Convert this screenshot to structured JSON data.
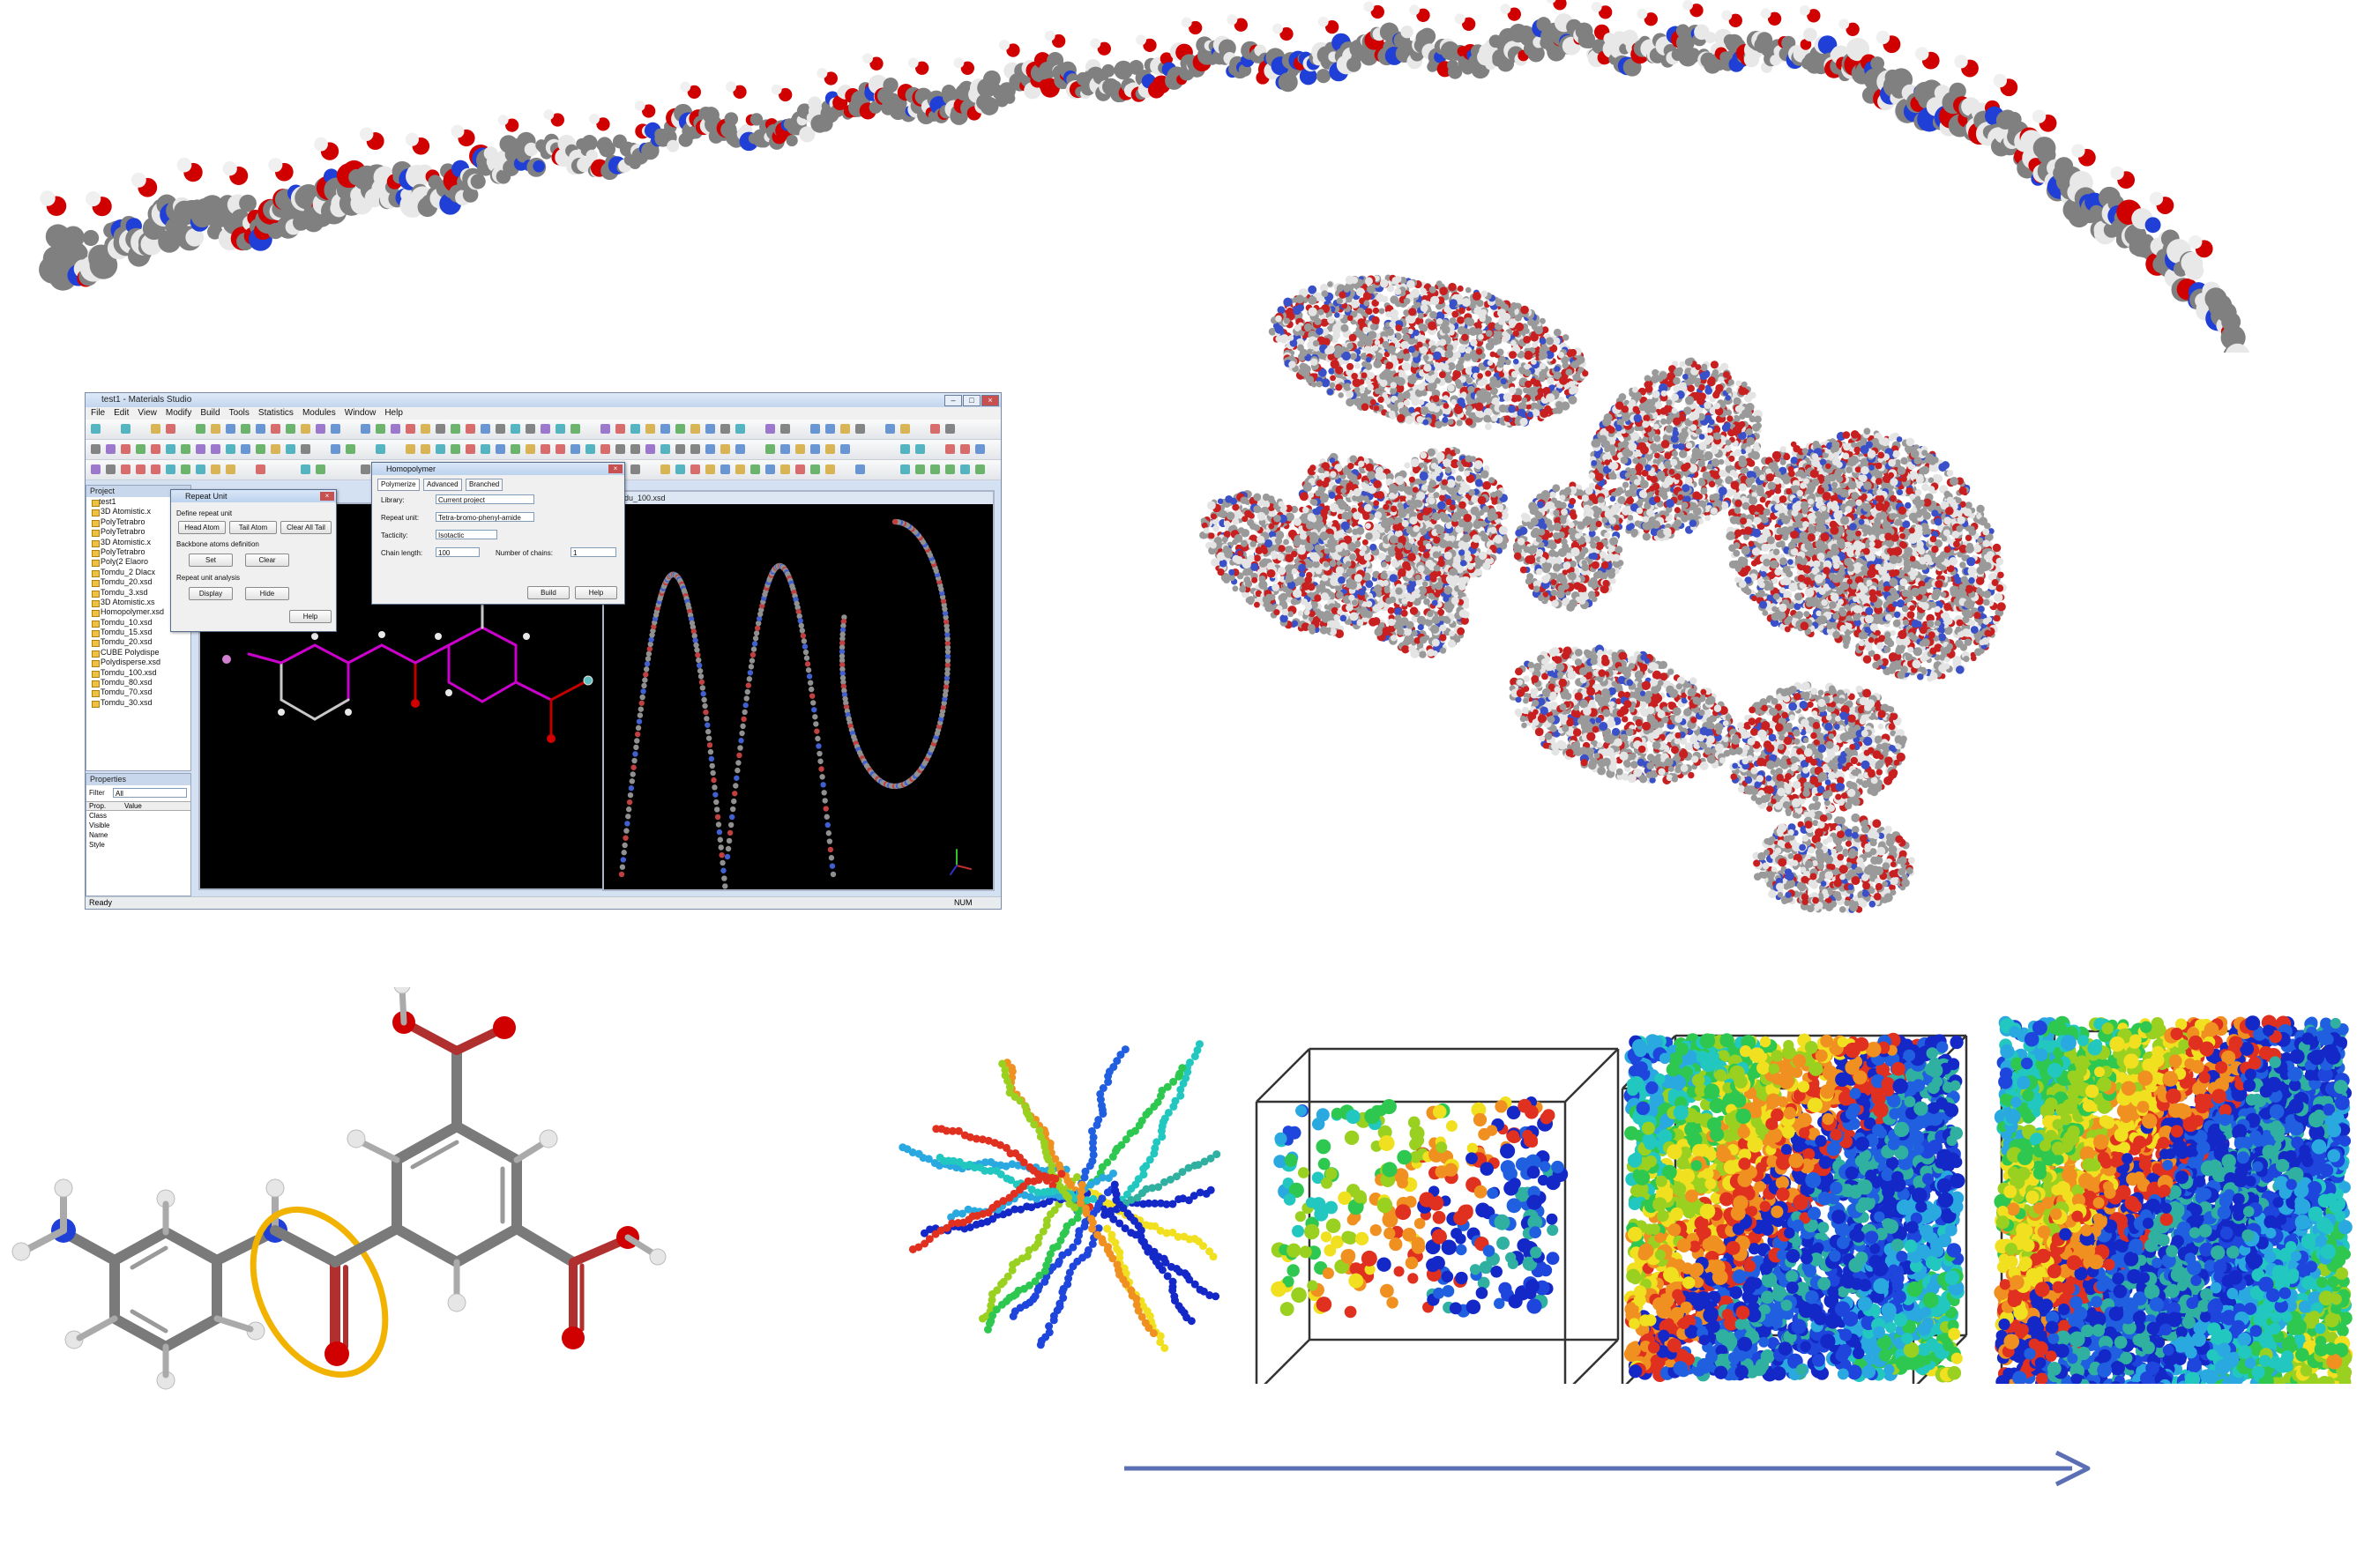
{
  "materials_studio": {
    "window_title": "test1 - Materials Studio",
    "menu": [
      "File",
      "Edit",
      "View",
      "Modify",
      "Build",
      "Tools",
      "Statistics",
      "Modules",
      "Window",
      "Help"
    ],
    "project_title": "Project",
    "tree_items": [
      "test1",
      "3D Atomistic.x",
      "PolyTetrabro",
      "PolyTetrabro",
      "3D Atomistic.x",
      "PolyTetrabro",
      "Poly(2 Elaoro",
      "Tomdu_2 Dlacx",
      "Tomdu_20.xsd",
      "Tomdu_3.xsd",
      "3D Atomistic.xs",
      "Homopolymer.xsd",
      "Tomdu_10.xsd",
      "Tomdu_15.xsd",
      "Tomdu_20.xsd",
      "CUBE Polydispe",
      "Polydisperse.xsd",
      "Tomdu_100.xsd",
      "Tomdu_80.xsd",
      "Tomdu_70.xsd",
      "Tomdu_30.xsd"
    ],
    "properties_title": "Properties",
    "filter_label": "Filter",
    "filter_value": "All",
    "props_columns": [
      "Prop.",
      "Value"
    ],
    "props_rows": [
      "Class",
      "Visible",
      "Name",
      "Style"
    ],
    "status_left": "Ready",
    "status_right": "NUM",
    "view2_title": "Tomdu_100.xsd",
    "repeat_unit_dialog": {
      "title": "Repeat Unit",
      "section1": "Define repeat unit",
      "head_atom": "Head Atom",
      "tail_atom": "Tail Atom",
      "clear_section": "Clear All Tail",
      "section2": "Backbone atoms definition",
      "set": "Set",
      "clear": "Clear",
      "section3": "Repeat unit analysis",
      "display": "Display",
      "hide": "Hide",
      "help": "Help"
    },
    "homopolymer_dialog": {
      "title": "Homopolymer",
      "tabs": [
        "Polymerize",
        "Advanced",
        "Branched"
      ],
      "library_label": "Library:",
      "library_value": "Current project",
      "repeat_unit_label": "Repeat unit:",
      "repeat_unit_value": "Tetra-bromo-phenyl-amide",
      "tacticity_label": "Tacticity:",
      "tacticity_value": "Isotactic",
      "chain_length_label": "Chain length:",
      "chain_length_value": "100",
      "number_chains_label": "Number of chains:",
      "number_chains_value": "1",
      "build": "Build",
      "help": "Help"
    }
  },
  "colors": {
    "carbon": "#808080",
    "oxygen": "#d10000",
    "nitrogen": "#1f3fd6",
    "hydrogen": "#e6e6e6",
    "highlight_ring": "#f2b200",
    "arrow": "#5b6fb5",
    "magenta_bonds": "#cc00cc"
  }
}
